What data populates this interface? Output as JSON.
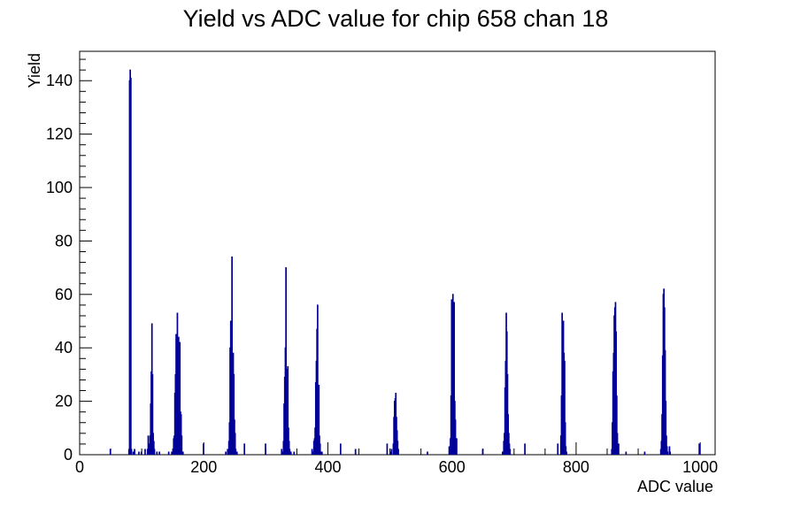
{
  "chart_data": {
    "type": "bar",
    "title": "Yield vs ADC value for chip 658 chan 18",
    "xlabel": "ADC value",
    "ylabel": "Yield",
    "xlim": [
      0,
      1024
    ],
    "ylim": [
      0,
      151
    ],
    "xticks": [
      0,
      200,
      400,
      600,
      800,
      1000
    ],
    "yticks": [
      0,
      20,
      40,
      60,
      80,
      100,
      120,
      140
    ],
    "grid": false,
    "color": "#000099",
    "bin_width": 1,
    "bins": [
      [
        49,
        2
      ],
      [
        79,
        2
      ],
      [
        80,
        140
      ],
      [
        81,
        144
      ],
      [
        82,
        141
      ],
      [
        83,
        2
      ],
      [
        86,
        1
      ],
      [
        88,
        2
      ],
      [
        95,
        1
      ],
      [
        99,
        1
      ],
      [
        105,
        2
      ],
      [
        109,
        2
      ],
      [
        110,
        7
      ],
      [
        111,
        4
      ],
      [
        113,
        7
      ],
      [
        114,
        19
      ],
      [
        115,
        31
      ],
      [
        116,
        49
      ],
      [
        117,
        30
      ],
      [
        118,
        8
      ],
      [
        119,
        5
      ],
      [
        120,
        2
      ],
      [
        124,
        1
      ],
      [
        128,
        1
      ],
      [
        143,
        1
      ],
      [
        148,
        1
      ],
      [
        150,
        2
      ],
      [
        151,
        6
      ],
      [
        152,
        7
      ],
      [
        153,
        23
      ],
      [
        154,
        30
      ],
      [
        155,
        45
      ],
      [
        156,
        32
      ],
      [
        157,
        53
      ],
      [
        158,
        43
      ],
      [
        159,
        44
      ],
      [
        160,
        33
      ],
      [
        161,
        42
      ],
      [
        162,
        16
      ],
      [
        163,
        15
      ],
      [
        164,
        7
      ],
      [
        166,
        1
      ],
      [
        199,
        4
      ],
      [
        235,
        1
      ],
      [
        238,
        2
      ],
      [
        240,
        5
      ],
      [
        241,
        12
      ],
      [
        242,
        40
      ],
      [
        243,
        50
      ],
      [
        244,
        28
      ],
      [
        245,
        74
      ],
      [
        246,
        25
      ],
      [
        247,
        38
      ],
      [
        248,
        30
      ],
      [
        249,
        13
      ],
      [
        250,
        8
      ],
      [
        251,
        2
      ],
      [
        253,
        1
      ],
      [
        265,
        4
      ],
      [
        299,
        4
      ],
      [
        325,
        2
      ],
      [
        327,
        1
      ],
      [
        328,
        5
      ],
      [
        329,
        19
      ],
      [
        330,
        29
      ],
      [
        331,
        40
      ],
      [
        332,
        70
      ],
      [
        333,
        30
      ],
      [
        334,
        32
      ],
      [
        335,
        33
      ],
      [
        336,
        10
      ],
      [
        337,
        5
      ],
      [
        338,
        2
      ],
      [
        340,
        1
      ],
      [
        345,
        1
      ],
      [
        374,
        2
      ],
      [
        376,
        1
      ],
      [
        377,
        5
      ],
      [
        378,
        6
      ],
      [
        379,
        10
      ],
      [
        380,
        27
      ],
      [
        381,
        35
      ],
      [
        382,
        47
      ],
      [
        383,
        56
      ],
      [
        384,
        24
      ],
      [
        385,
        26
      ],
      [
        386,
        7
      ],
      [
        387,
        4
      ],
      [
        388,
        1
      ],
      [
        390,
        1
      ],
      [
        420,
        4
      ],
      [
        444,
        2
      ],
      [
        495,
        4
      ],
      [
        501,
        1
      ],
      [
        502,
        2
      ],
      [
        505,
        4
      ],
      [
        506,
        14
      ],
      [
        507,
        20
      ],
      [
        508,
        21
      ],
      [
        509,
        23
      ],
      [
        510,
        14
      ],
      [
        511,
        9
      ],
      [
        512,
        5
      ],
      [
        513,
        2
      ],
      [
        560,
        1
      ],
      [
        595,
        3
      ],
      [
        597,
        6
      ],
      [
        598,
        22
      ],
      [
        599,
        58
      ],
      [
        600,
        57
      ],
      [
        601,
        60
      ],
      [
        602,
        30
      ],
      [
        603,
        57
      ],
      [
        604,
        20
      ],
      [
        605,
        13
      ],
      [
        606,
        2
      ],
      [
        607,
        6
      ],
      [
        649,
        2
      ],
      [
        681,
        1
      ],
      [
        683,
        5
      ],
      [
        684,
        8
      ],
      [
        685,
        25
      ],
      [
        686,
        35
      ],
      [
        687,
        53
      ],
      [
        688,
        46
      ],
      [
        689,
        30
      ],
      [
        690,
        15
      ],
      [
        691,
        8
      ],
      [
        692,
        4
      ],
      [
        693,
        2
      ],
      [
        717,
        4
      ],
      [
        770,
        4
      ],
      [
        775,
        7
      ],
      [
        776,
        22
      ],
      [
        777,
        53
      ],
      [
        778,
        45
      ],
      [
        779,
        50
      ],
      [
        780,
        38
      ],
      [
        781,
        35
      ],
      [
        782,
        12
      ],
      [
        783,
        3
      ],
      [
        784,
        1
      ],
      [
        857,
        2
      ],
      [
        858,
        12
      ],
      [
        859,
        31
      ],
      [
        860,
        38
      ],
      [
        861,
        52
      ],
      [
        862,
        55
      ],
      [
        863,
        57
      ],
      [
        864,
        46
      ],
      [
        865,
        22
      ],
      [
        866,
        8
      ],
      [
        867,
        3
      ],
      [
        868,
        4
      ],
      [
        880,
        1
      ],
      [
        910,
        1
      ],
      [
        936,
        2
      ],
      [
        937,
        5
      ],
      [
        938,
        15
      ],
      [
        939,
        37
      ],
      [
        940,
        60
      ],
      [
        941,
        62
      ],
      [
        942,
        55
      ],
      [
        943,
        39
      ],
      [
        944,
        20
      ],
      [
        945,
        7
      ],
      [
        946,
        3
      ],
      [
        947,
        1
      ],
      [
        950,
        3
      ],
      [
        951,
        1
      ],
      [
        998,
        4
      ]
    ]
  }
}
